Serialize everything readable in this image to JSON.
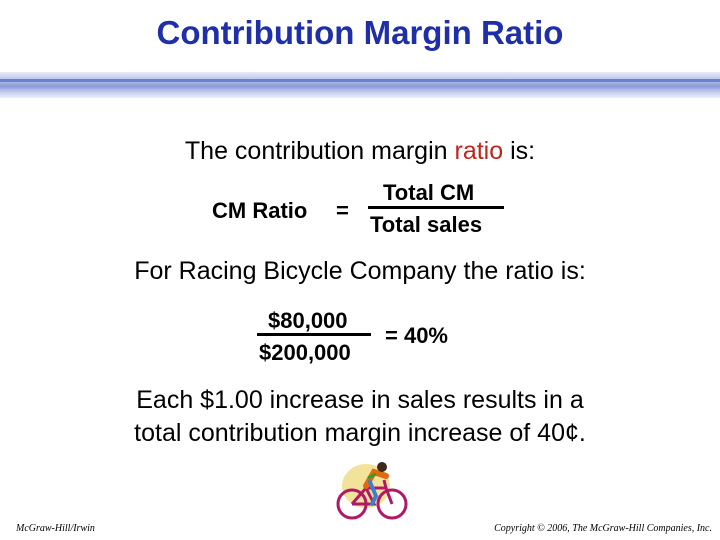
{
  "slide": {
    "title": "Contribution Margin Ratio",
    "intro_before": "The contribution margin ",
    "intro_highlight": "ratio",
    "intro_after": " is:",
    "formula": {
      "left": "CM Ratio",
      "equals": "=",
      "numerator": "Total CM",
      "denominator": "Total sales"
    },
    "company_line": "For Racing Bicycle Company the ratio is:",
    "example": {
      "numerator": "$80,000",
      "denominator": "$200,000",
      "result": "= 40%"
    },
    "conclusion_line1": "Each $1.00 increase in sales results in a",
    "conclusion_line2": "total contribution margin increase of 40¢.",
    "footer_left": "McGraw-Hill/Irwin",
    "footer_right": "Copyright © 2006, The McGraw-Hill Companies, Inc.",
    "colors": {
      "title": "#1f2fa8",
      "highlight": "#c0251b"
    },
    "illustration": "cyclist-icon"
  }
}
